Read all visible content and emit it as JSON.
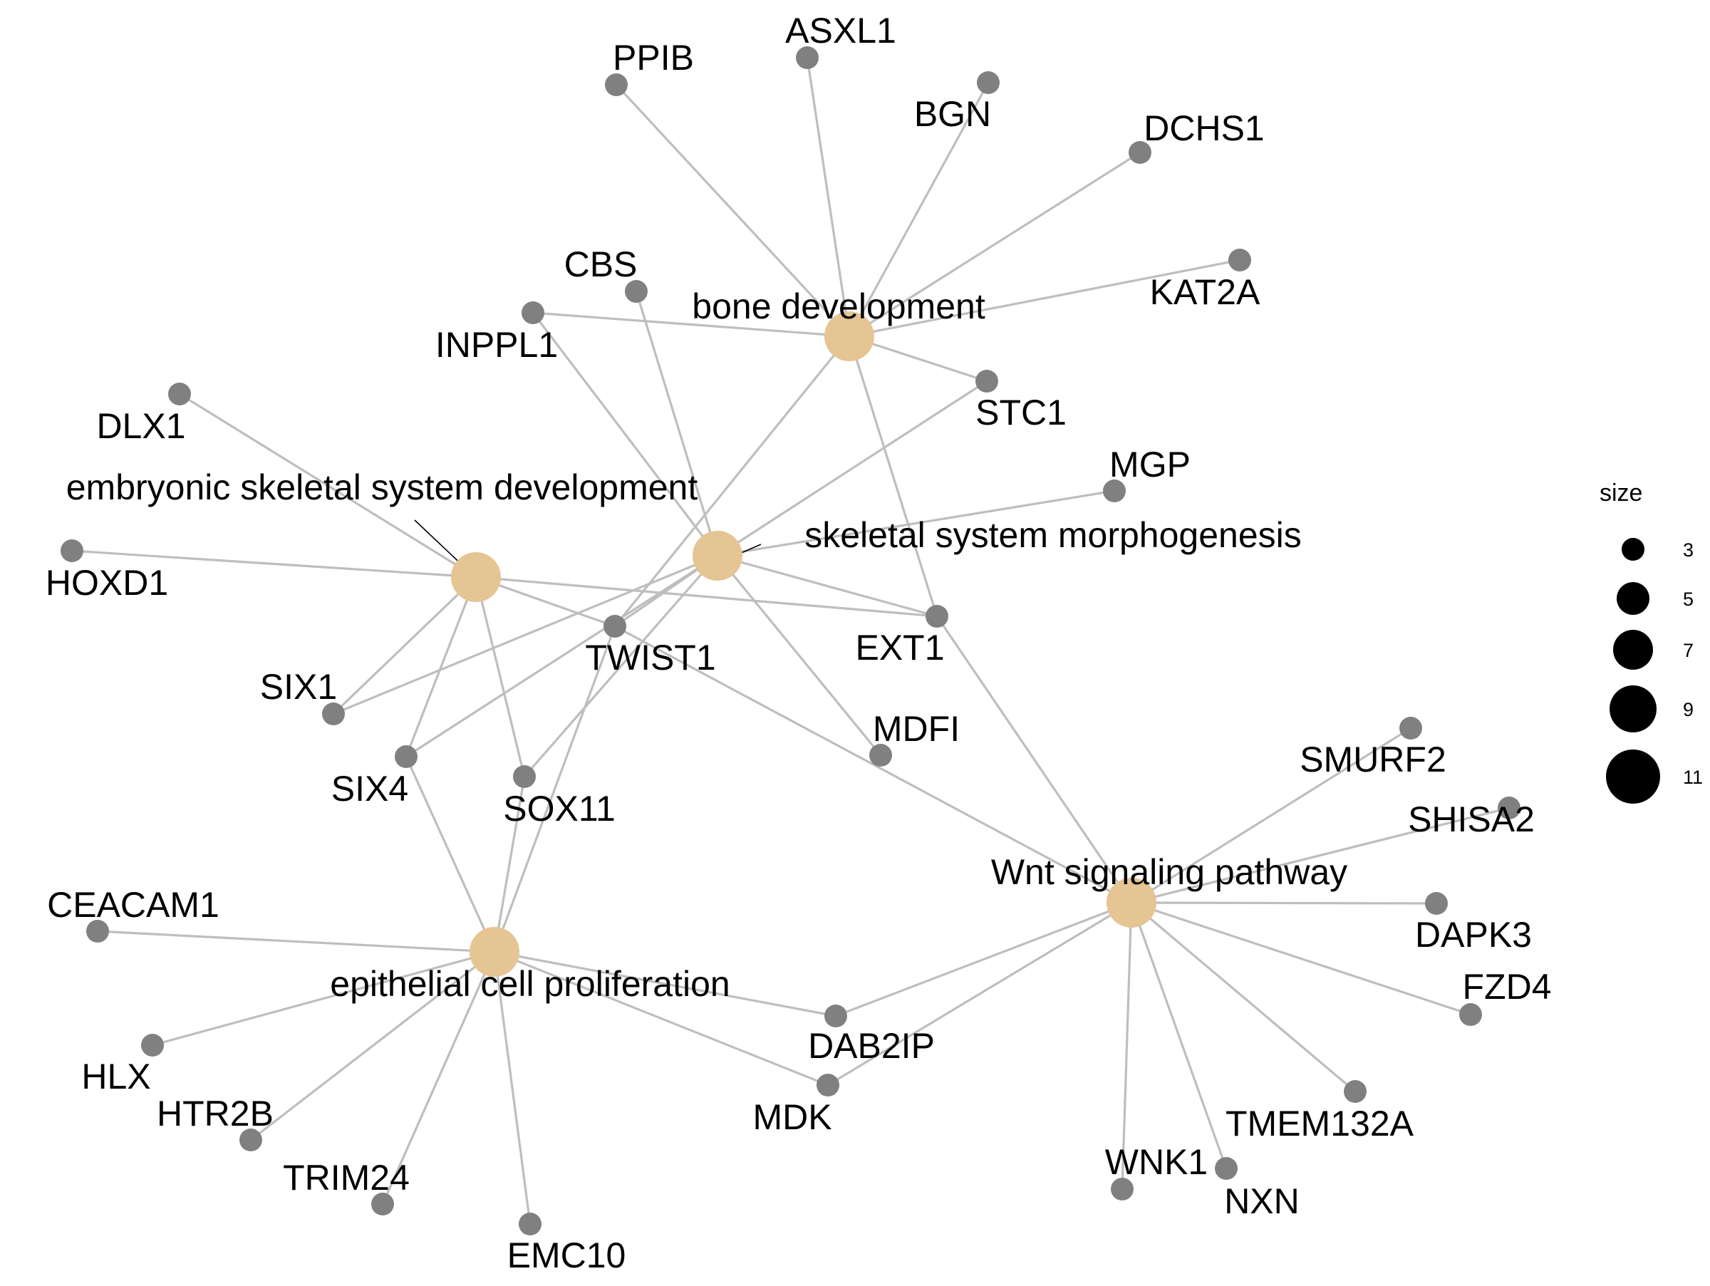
{
  "network": {
    "colors": {
      "category_node": "#E6C594",
      "gene_node": "#808080",
      "edge": "#BEBEBE",
      "label": "#000000",
      "leader": "#000000"
    },
    "categories": [
      {
        "id": "bone",
        "label": "bone development"
      },
      {
        "id": "skel",
        "label": "skeletal system morphogenesis"
      },
      {
        "id": "emb",
        "label": "embryonic skeletal system development"
      },
      {
        "id": "epi",
        "label": "epithelial cell proliferation"
      },
      {
        "id": "wnt",
        "label": "Wnt signaling pathway"
      }
    ],
    "genes": [
      {
        "id": "PPIB",
        "label": "PPIB"
      },
      {
        "id": "ASXL1",
        "label": "ASXL1"
      },
      {
        "id": "BGN",
        "label": "BGN"
      },
      {
        "id": "DCHS1",
        "label": "DCHS1"
      },
      {
        "id": "KAT2A",
        "label": "KAT2A"
      },
      {
        "id": "CBS",
        "label": "CBS"
      },
      {
        "id": "INPPL1",
        "label": "INPPL1"
      },
      {
        "id": "STC1",
        "label": "STC1"
      },
      {
        "id": "DLX1",
        "label": "DLX1"
      },
      {
        "id": "MGP",
        "label": "MGP"
      },
      {
        "id": "HOXD1",
        "label": "HOXD1"
      },
      {
        "id": "TWIST1",
        "label": "TWIST1"
      },
      {
        "id": "EXT1",
        "label": "EXT1"
      },
      {
        "id": "SIX1",
        "label": "SIX1"
      },
      {
        "id": "SIX4",
        "label": "SIX4"
      },
      {
        "id": "SOX11",
        "label": "SOX11"
      },
      {
        "id": "MDFI",
        "label": "MDFI"
      },
      {
        "id": "SMURF2",
        "label": "SMURF2"
      },
      {
        "id": "SHISA2",
        "label": "SHISA2"
      },
      {
        "id": "DAPK3",
        "label": "DAPK3"
      },
      {
        "id": "FZD4",
        "label": "FZD4"
      },
      {
        "id": "CEACAM1",
        "label": "CEACAM1"
      },
      {
        "id": "HLX",
        "label": "HLX"
      },
      {
        "id": "HTR2B",
        "label": "HTR2B"
      },
      {
        "id": "TRIM24",
        "label": "TRIM24"
      },
      {
        "id": "EMC10",
        "label": "EMC10"
      },
      {
        "id": "DAB2IP",
        "label": "DAB2IP"
      },
      {
        "id": "MDK",
        "label": "MDK"
      },
      {
        "id": "TMEM132A",
        "label": "TMEM132A"
      },
      {
        "id": "WNK1",
        "label": "WNK1"
      },
      {
        "id": "NXN",
        "label": "NXN"
      }
    ],
    "edges": [
      [
        "bone",
        "PPIB"
      ],
      [
        "bone",
        "ASXL1"
      ],
      [
        "bone",
        "BGN"
      ],
      [
        "bone",
        "DCHS1"
      ],
      [
        "bone",
        "KAT2A"
      ],
      [
        "bone",
        "INPPL1"
      ],
      [
        "bone",
        "STC1"
      ],
      [
        "bone",
        "EXT1"
      ],
      [
        "bone",
        "TWIST1"
      ],
      [
        "skel",
        "CBS"
      ],
      [
        "skel",
        "INPPL1"
      ],
      [
        "skel",
        "STC1"
      ],
      [
        "skel",
        "MGP"
      ],
      [
        "skel",
        "EXT1"
      ],
      [
        "skel",
        "TWIST1"
      ],
      [
        "skel",
        "SIX1"
      ],
      [
        "skel",
        "SIX4"
      ],
      [
        "skel",
        "SOX11"
      ],
      [
        "skel",
        "MDFI"
      ],
      [
        "emb",
        "DLX1"
      ],
      [
        "emb",
        "HOXD1"
      ],
      [
        "emb",
        "TWIST1"
      ],
      [
        "emb",
        "EXT1"
      ],
      [
        "emb",
        "SIX1"
      ],
      [
        "emb",
        "SIX4"
      ],
      [
        "emb",
        "SOX11"
      ],
      [
        "epi",
        "SIX4"
      ],
      [
        "epi",
        "SOX11"
      ],
      [
        "epi",
        "TWIST1"
      ],
      [
        "epi",
        "CEACAM1"
      ],
      [
        "epi",
        "HLX"
      ],
      [
        "epi",
        "HTR2B"
      ],
      [
        "epi",
        "TRIM24"
      ],
      [
        "epi",
        "EMC10"
      ],
      [
        "epi",
        "DAB2IP"
      ],
      [
        "epi",
        "MDK"
      ],
      [
        "wnt",
        "EXT1"
      ],
      [
        "wnt",
        "TWIST1"
      ],
      [
        "wnt",
        "SMURF2"
      ],
      [
        "wnt",
        "SHISA2"
      ],
      [
        "wnt",
        "DAPK3"
      ],
      [
        "wnt",
        "FZD4"
      ],
      [
        "wnt",
        "DAB2IP"
      ],
      [
        "wnt",
        "MDK"
      ],
      [
        "wnt",
        "TMEM132A"
      ],
      [
        "wnt",
        "WNK1"
      ],
      [
        "wnt",
        "NXN"
      ]
    ]
  },
  "legend": {
    "title": "size",
    "entries": [
      {
        "label": "3",
        "size": 3
      },
      {
        "label": "5",
        "size": 5
      },
      {
        "label": "7",
        "size": 7
      },
      {
        "label": "9",
        "size": 9
      },
      {
        "label": "11",
        "size": 11
      }
    ]
  }
}
